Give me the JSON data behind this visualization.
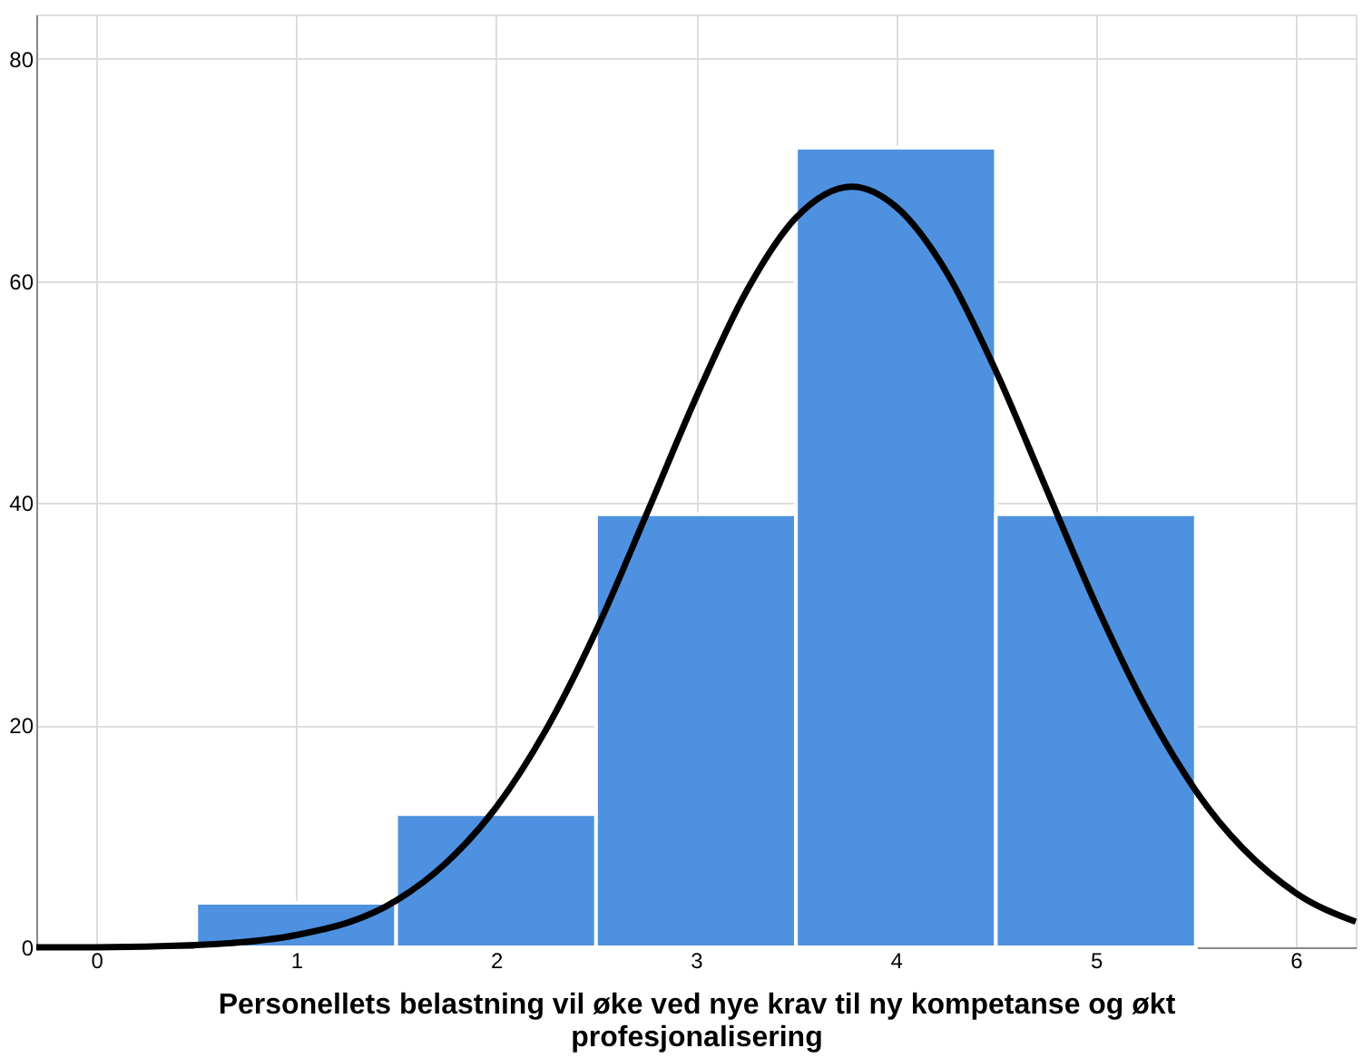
{
  "chart_data": {
    "type": "histogram",
    "xlabel": "Personellets belastning vil øke ved nye krav til ny kompetanse og økt profesjonalisering",
    "series": [
      {
        "bins": [
          0.5,
          1.5,
          2.5,
          3.5,
          4.5,
          5.5
        ],
        "values": [
          4,
          12,
          39,
          72,
          39
        ],
        "color": "#4e91e0"
      },
      {
        "type": "line",
        "color": "#000000",
        "x": [
          -0.3,
          0,
          0.5,
          1,
          1.5,
          1.75,
          2,
          2.25,
          2.5,
          2.75,
          3,
          3.25,
          3.5,
          3.78,
          4,
          4.25,
          4.5,
          4.75,
          5,
          5.25,
          5.5,
          6,
          6.3
        ],
        "values": [
          0,
          0,
          0.2,
          1.1,
          4.2,
          7.6,
          12.6,
          19.6,
          28.5,
          38.9,
          49.5,
          59,
          65.7,
          68.5,
          66.7,
          60.9,
          51.9,
          41.4,
          30.9,
          21.6,
          14.1,
          4.9,
          2.3
        ]
      }
    ],
    "xlim": [
      -0.3,
      6.3
    ],
    "xticks": [
      0,
      1,
      2,
      3,
      4,
      5,
      6
    ],
    "ylim": [
      0,
      84
    ],
    "yticks": [
      0,
      20,
      40,
      60,
      80
    ],
    "grid": true
  }
}
